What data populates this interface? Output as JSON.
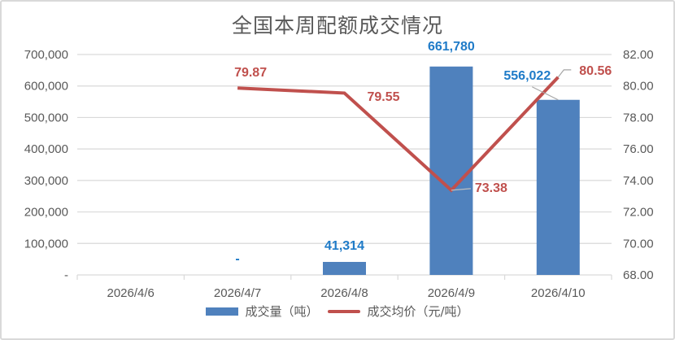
{
  "chart_data": {
    "type": "bar+line",
    "title": "全国本周配额成交情况",
    "categories": [
      "2026/4/6",
      "2026/4/7",
      "2026/4/8",
      "2026/4/9",
      "2026/4/10"
    ],
    "series": [
      {
        "name": "成交量（吨）",
        "type": "bar",
        "axis": "left",
        "color": "#4f81bd",
        "values": [
          null,
          0,
          41314,
          661780,
          556022
        ],
        "labels": [
          "",
          "-",
          "41,314",
          "661,780",
          "556,022"
        ]
      },
      {
        "name": "成交均价（元/吨）",
        "type": "line",
        "axis": "right",
        "color": "#c0504d",
        "values": [
          null,
          79.87,
          79.55,
          73.38,
          80.56
        ],
        "labels": [
          "",
          "79.87",
          "79.55",
          "73.38",
          "80.56"
        ]
      }
    ],
    "y_left": {
      "ylim": [
        0,
        700000
      ],
      "ticks": [
        "-",
        "100,000",
        "200,000",
        "300,000",
        "400,000",
        "500,000",
        "600,000",
        "700,000"
      ]
    },
    "y_right": {
      "ylim": [
        68,
        82
      ],
      "ticks": [
        "68.00",
        "70.00",
        "72.00",
        "74.00",
        "76.00",
        "78.00",
        "80.00",
        "82.00"
      ]
    },
    "xlabel": "",
    "ylabel": "",
    "grid": true,
    "legend_position": "bottom"
  },
  "colors": {
    "bar": "#4f81bd",
    "bar_label": "#1f7bc8",
    "line": "#c0504d",
    "axis_text": "#595959",
    "grid": "#d9d9d9"
  }
}
